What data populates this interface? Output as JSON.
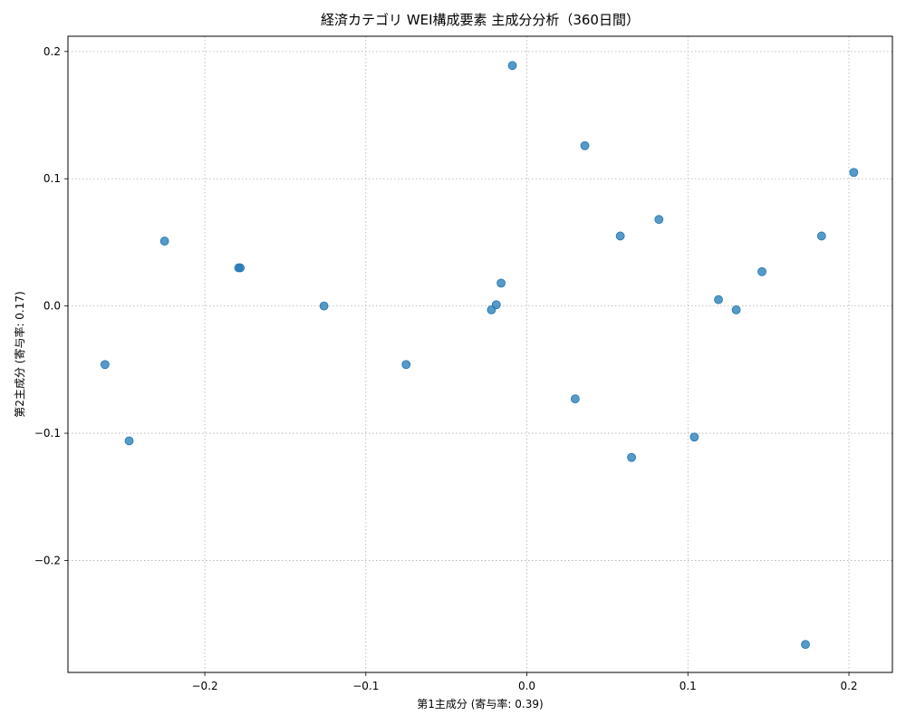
{
  "chart_data": {
    "type": "scatter",
    "title": "経済カテゴリ WEI構成要素 主成分分析（360日間）",
    "xlabel": "第1主成分 (寄与率: 0.39)",
    "ylabel": "第2主成分 (寄与率: 0.17)",
    "xlim": [
      -0.285,
      0.227
    ],
    "ylim": [
      -0.288,
      0.212
    ],
    "xticks": [
      -0.2,
      -0.1,
      0.0,
      0.1,
      0.2
    ],
    "xtick_labels": [
      "−0.2",
      "−0.1",
      "0.0",
      "0.1",
      "0.2"
    ],
    "yticks": [
      -0.2,
      -0.1,
      0.0,
      0.1,
      0.2
    ],
    "ytick_labels": [
      "−0.2",
      "−0.1",
      "0.0",
      "0.1",
      "0.2"
    ],
    "grid": true,
    "marker_color": "#1f77b4",
    "marker_alpha": 0.75,
    "points": [
      {
        "x": -0.262,
        "y": -0.046
      },
      {
        "x": -0.247,
        "y": -0.106
      },
      {
        "x": -0.225,
        "y": 0.051
      },
      {
        "x": -0.179,
        "y": 0.03
      },
      {
        "x": -0.178,
        "y": 0.03
      },
      {
        "x": -0.126,
        "y": 0.0
      },
      {
        "x": -0.075,
        "y": -0.046
      },
      {
        "x": -0.022,
        "y": -0.003
      },
      {
        "x": -0.019,
        "y": 0.001
      },
      {
        "x": -0.016,
        "y": 0.018
      },
      {
        "x": -0.009,
        "y": 0.189
      },
      {
        "x": 0.03,
        "y": -0.073
      },
      {
        "x": 0.036,
        "y": 0.126
      },
      {
        "x": 0.058,
        "y": 0.055
      },
      {
        "x": 0.065,
        "y": -0.119
      },
      {
        "x": 0.082,
        "y": 0.068
      },
      {
        "x": 0.104,
        "y": -0.103
      },
      {
        "x": 0.119,
        "y": 0.005
      },
      {
        "x": 0.13,
        "y": -0.003
      },
      {
        "x": 0.146,
        "y": 0.027
      },
      {
        "x": 0.173,
        "y": -0.266
      },
      {
        "x": 0.183,
        "y": 0.055
      },
      {
        "x": 0.203,
        "y": 0.105
      }
    ]
  }
}
